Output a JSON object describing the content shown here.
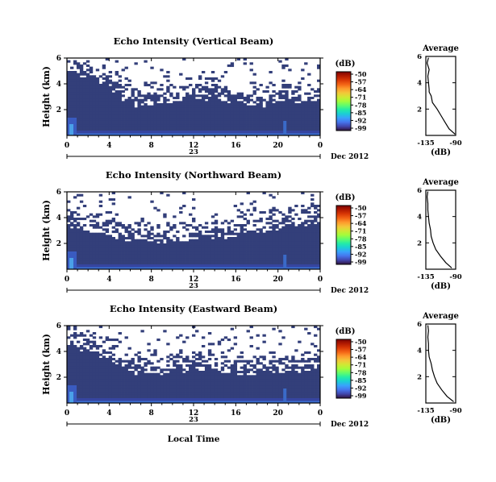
{
  "figure": {
    "date_label": "Dec 2012",
    "day_label": "23",
    "xlabel": "Local Time",
    "colorbar_unit": "(dB)",
    "profile_title": "Average",
    "profile_xlabel": "(dB)"
  },
  "colorbar": {
    "ticks": [
      "-50",
      "-57",
      "-64",
      "-71",
      "-78",
      "-85",
      "-92",
      "-99"
    ],
    "colors": [
      "#30123b",
      "#4145ab",
      "#4675ed",
      "#39a2fc",
      "#1bcfd4",
      "#24eca6",
      "#61fc6c",
      "#a4fc3b",
      "#d1e834",
      "#f3c63a",
      "#fe9b2d",
      "#f36315",
      "#d93806",
      "#b11901",
      "#7a0402"
    ]
  },
  "chart_data": [
    {
      "type": "heatmap",
      "title": "Echo Intensity (Vertical Beam)",
      "xlabel": "Local Time",
      "ylabel": "Height (km)",
      "x_ticks": [
        "0",
        "4",
        "8",
        "12",
        "16",
        "20",
        "0"
      ],
      "y_ticks": [
        "6",
        "4",
        "2"
      ],
      "xlim": [
        0,
        24
      ],
      "ylim": [
        0,
        6
      ],
      "background_fill_top_km": [
        4.8,
        4.5,
        4.2,
        3.9,
        3.3,
        2.7,
        2.2,
        2.3,
        2.5,
        2.4,
        2.6,
        2.8,
        2.8,
        2.7,
        2.6,
        2.5,
        2.5,
        2.4,
        2.2,
        2.3,
        2.6,
        2.4,
        2.5,
        2.6,
        2.8
      ],
      "profile": {
        "xlim": [
          -135,
          -90
        ],
        "x_ticks": [
          "-135",
          "-90"
        ],
        "y_ticks": [
          "6",
          "4",
          "2"
        ],
        "height_km": [
          0.1,
          0.5,
          1.0,
          1.5,
          2.0,
          2.5,
          3.0,
          3.3,
          3.5,
          4.0,
          4.5,
          5.0,
          5.5,
          5.9
        ],
        "mean_db": [
          -91,
          -100,
          -106,
          -112,
          -118,
          -125,
          -127,
          -130,
          -130,
          -131,
          -132,
          -130,
          -133,
          -131
        ]
      }
    },
    {
      "type": "heatmap",
      "title": "Echo Intensity (Northward Beam)",
      "xlabel": "Local Time",
      "ylabel": "Height (km)",
      "x_ticks": [
        "0",
        "4",
        "8",
        "12",
        "16",
        "20",
        "0"
      ],
      "y_ticks": [
        "6",
        "4",
        "2"
      ],
      "xlim": [
        0,
        24
      ],
      "ylim": [
        0,
        6
      ],
      "background_fill_top_km": [
        3.2,
        3.0,
        2.8,
        2.6,
        2.4,
        2.2,
        2.1,
        2.1,
        2.0,
        2.0,
        2.1,
        2.2,
        2.3,
        2.4,
        2.4,
        2.5,
        2.7,
        2.8,
        2.9,
        3.0,
        3.2,
        3.3,
        3.4,
        3.5,
        3.5
      ],
      "profile": {
        "xlim": [
          -135,
          -90
        ],
        "x_ticks": [
          "-135",
          "-90"
        ],
        "y_ticks": [
          "6",
          "4",
          "2"
        ],
        "height_km": [
          0.1,
          0.5,
          1.0,
          1.5,
          2.0,
          2.5,
          3.0,
          3.5,
          4.0,
          4.5,
          5.0,
          5.5,
          5.9
        ],
        "mean_db": [
          -96,
          -105,
          -113,
          -120,
          -124,
          -127,
          -128,
          -130,
          -131,
          -132,
          -132,
          -133,
          -132
        ]
      }
    },
    {
      "type": "heatmap",
      "title": "Echo Intensity (Eastward Beam)",
      "xlabel": "Local Time",
      "ylabel": "Height (km)",
      "x_ticks": [
        "0",
        "4",
        "8",
        "12",
        "16",
        "20",
        "0"
      ],
      "y_ticks": [
        "6",
        "4",
        "2"
      ],
      "xlim": [
        0,
        24
      ],
      "ylim": [
        0,
        6
      ],
      "background_fill_top_km": [
        4.3,
        4.0,
        3.8,
        3.5,
        3.0,
        2.5,
        2.2,
        2.3,
        2.2,
        2.2,
        2.3,
        2.4,
        2.4,
        2.4,
        2.3,
        2.2,
        2.2,
        2.1,
        2.1,
        2.2,
        2.3,
        2.4,
        2.5,
        2.6,
        2.7
      ],
      "profile": {
        "xlim": [
          -135,
          -90
        ],
        "x_ticks": [
          "-135",
          "-90"
        ],
        "y_ticks": [
          "6",
          "4",
          "2"
        ],
        "height_km": [
          0.1,
          0.5,
          1.0,
          1.5,
          2.0,
          2.5,
          3.0,
          3.5,
          4.0,
          4.5,
          5.0,
          5.5,
          5.9
        ],
        "mean_db": [
          -93,
          -103,
          -111,
          -118,
          -122,
          -125,
          -127,
          -130,
          -131,
          -131,
          -132,
          -131,
          -132
        ]
      }
    }
  ]
}
